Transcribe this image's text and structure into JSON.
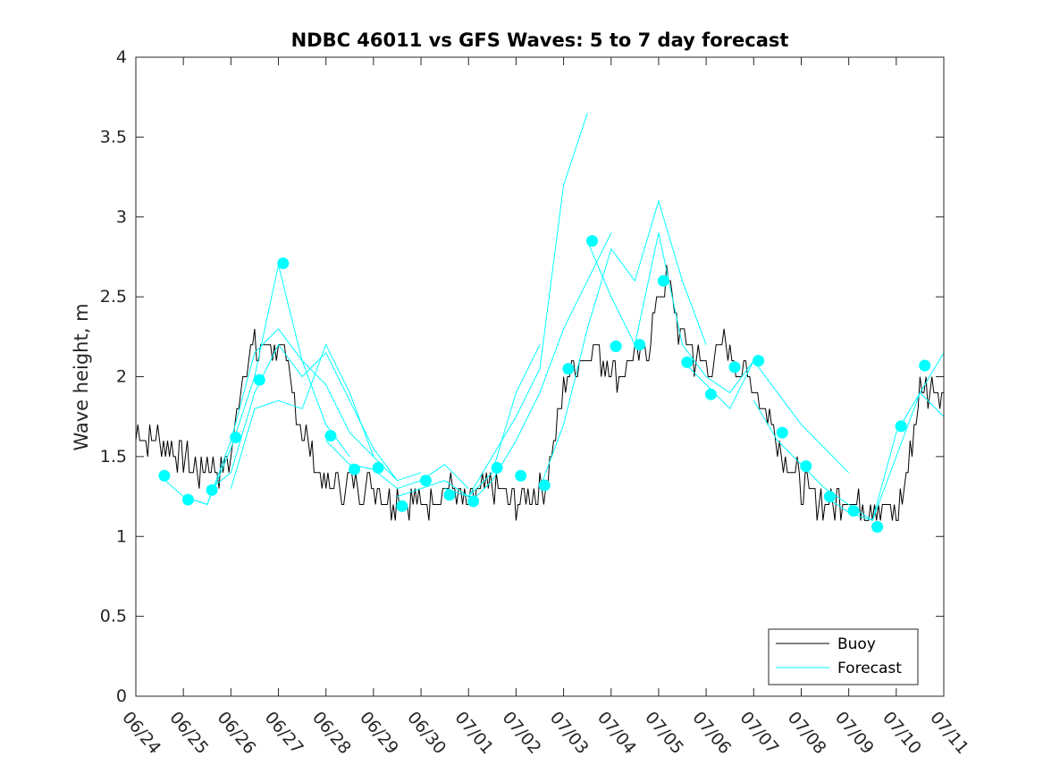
{
  "chart_data": {
    "type": "line",
    "title": "NDBC 46011 vs GFS Waves: 5 to 7 day forecast",
    "xlabel": "",
    "ylabel": "Wave height, m",
    "xlim": [
      "06/24",
      "07/11"
    ],
    "ylim": [
      0,
      4
    ],
    "x_ticks": [
      "06/24",
      "06/25",
      "06/26",
      "06/27",
      "06/28",
      "06/29",
      "06/30",
      "07/01",
      "07/02",
      "07/03",
      "07/04",
      "07/05",
      "07/06",
      "07/07",
      "07/08",
      "07/09",
      "07/10",
      "07/11"
    ],
    "y_ticks": [
      "0",
      "0.5",
      "1",
      "1.5",
      "2",
      "2.5",
      "3",
      "3.5",
      "4"
    ],
    "grid": false,
    "legend": {
      "position": "bottom-right",
      "entries": [
        "Buoy",
        "Forecast"
      ]
    },
    "colors": {
      "buoy": "#000000",
      "forecast": "#00ffff"
    },
    "buoy_x_days_from_0624": [
      0.0,
      0.5,
      1.0,
      1.3,
      1.5,
      1.8,
      2.0,
      2.2,
      2.4,
      2.6,
      2.8,
      3.0,
      3.2,
      3.4,
      3.6,
      3.8,
      4.0,
      4.2,
      4.4,
      4.6,
      4.8,
      5.0,
      5.3,
      5.6,
      6.0,
      6.3,
      6.6,
      7.0,
      7.3,
      7.6,
      8.0,
      8.3,
      8.6,
      9.0,
      9.2,
      9.4,
      9.6,
      9.8,
      10.0,
      10.2,
      10.4,
      10.6,
      10.8,
      11.0,
      11.2,
      11.4,
      11.6,
      11.8,
      12.0,
      12.2,
      12.4,
      12.6,
      12.8,
      13.0,
      13.2,
      13.4,
      13.6,
      13.8,
      14.0,
      14.3,
      14.6,
      15.0,
      15.3,
      15.6,
      15.8,
      16.0,
      16.2,
      16.5,
      16.8,
      17.0
    ],
    "buoy_y": [
      1.65,
      1.6,
      1.5,
      1.4,
      1.45,
      1.4,
      1.5,
      1.9,
      2.2,
      2.15,
      2.2,
      2.2,
      2.0,
      1.8,
      1.6,
      1.4,
      1.3,
      1.35,
      1.3,
      1.35,
      1.3,
      1.35,
      1.2,
      1.25,
      1.2,
      1.25,
      1.3,
      1.2,
      1.3,
      1.3,
      1.2,
      1.25,
      1.3,
      1.9,
      2.1,
      2.1,
      2.2,
      2.1,
      2.1,
      2.0,
      2.1,
      2.15,
      2.2,
      2.5,
      2.6,
      2.3,
      2.2,
      2.1,
      2.05,
      2.1,
      2.2,
      2.1,
      2.0,
      1.95,
      1.8,
      1.7,
      1.5,
      1.45,
      1.3,
      1.25,
      1.2,
      1.25,
      1.2,
      1.2,
      1.15,
      1.1,
      1.35,
      1.9,
      1.95,
      1.9
    ],
    "forecast_markers_x_days_from_0624": [
      0.6,
      1.1,
      1.6,
      2.1,
      2.6,
      3.1,
      4.1,
      4.6,
      5.1,
      5.6,
      6.1,
      6.6,
      7.1,
      7.6,
      8.1,
      8.6,
      9.1,
      9.6,
      10.1,
      10.6,
      11.1,
      11.6,
      12.1,
      12.6,
      13.1,
      13.6,
      14.1,
      14.6,
      15.1,
      15.6,
      16.1,
      16.6
    ],
    "forecast_markers_y": [
      1.38,
      1.23,
      1.29,
      1.62,
      1.98,
      2.71,
      1.63,
      1.42,
      1.43,
      1.19,
      1.35,
      1.26,
      1.22,
      1.43,
      1.38,
      1.32,
      2.05,
      2.85,
      2.19,
      2.2,
      2.6,
      2.09,
      1.89,
      2.06,
      2.1,
      1.65,
      1.44,
      1.25,
      1.16,
      1.06,
      1.69,
      2.07
    ],
    "forecast_series": [
      {
        "x": [
          0.5,
          1.0,
          1.5,
          2.0,
          2.5,
          3.0,
          3.5,
          4.0,
          4.5
        ],
        "y": [
          1.38,
          1.25,
          1.2,
          1.55,
          2.0,
          2.7,
          2.1,
          1.7,
          1.5
        ]
      },
      {
        "x": [
          1.0,
          1.5,
          2.0,
          2.5,
          3.0,
          3.5,
          4.0,
          4.5,
          5.0
        ],
        "y": [
          1.25,
          1.2,
          1.6,
          2.15,
          2.3,
          2.1,
          1.95,
          1.65,
          1.5
        ]
      },
      {
        "x": [
          1.5,
          2.0,
          2.5,
          3.0,
          3.5,
          4.0,
          4.5,
          5.0,
          5.5
        ],
        "y": [
          1.28,
          1.4,
          1.9,
          2.2,
          2.0,
          2.15,
          1.85,
          1.55,
          1.35
        ]
      },
      {
        "x": [
          2.0,
          2.5,
          3.0,
          3.5,
          4.0,
          4.5,
          5.0,
          5.5,
          6.0
        ],
        "y": [
          1.3,
          1.8,
          1.85,
          1.8,
          2.2,
          1.9,
          1.5,
          1.35,
          1.4
        ]
      },
      {
        "x": [
          4.0,
          4.5,
          5.0,
          5.5,
          6.0,
          6.5,
          7.0
        ],
        "y": [
          1.6,
          1.45,
          1.42,
          1.3,
          1.35,
          1.45,
          1.3
        ]
      },
      {
        "x": [
          5.5,
          6.0,
          6.5,
          7.0,
          7.5,
          8.0,
          8.5
        ],
        "y": [
          1.25,
          1.3,
          1.35,
          1.25,
          1.4,
          1.9,
          2.2
        ]
      },
      {
        "x": [
          6.5,
          7.0,
          7.5,
          8.0,
          8.5,
          9.0,
          9.5
        ],
        "y": [
          1.3,
          1.25,
          1.5,
          1.75,
          2.05,
          3.2,
          3.65
        ]
      },
      {
        "x": [
          7.0,
          7.5,
          8.0,
          8.5,
          9.0,
          9.5,
          10.0
        ],
        "y": [
          1.2,
          1.35,
          1.6,
          1.9,
          2.3,
          2.6,
          2.9
        ]
      },
      {
        "x": [
          8.5,
          9.0,
          9.5,
          10.0,
          10.5,
          11.0,
          11.5,
          12.0
        ],
        "y": [
          1.3,
          1.7,
          2.3,
          2.8,
          2.6,
          3.1,
          2.6,
          2.2
        ]
      },
      {
        "x": [
          9.5,
          10.0,
          10.5,
          11.0,
          11.5,
          12.0,
          12.5,
          13.0
        ],
        "y": [
          2.85,
          2.5,
          2.2,
          2.9,
          2.2,
          2.0,
          1.9,
          2.1
        ]
      },
      {
        "x": [
          11.5,
          12.0,
          12.5,
          13.0,
          13.5,
          14.0,
          14.5,
          15.0
        ],
        "y": [
          2.1,
          1.95,
          1.8,
          2.1,
          1.9,
          1.7,
          1.55,
          1.4
        ]
      },
      {
        "x": [
          13.0,
          13.5,
          14.0,
          14.5,
          15.0,
          15.5,
          16.0,
          16.5,
          17.0
        ],
        "y": [
          1.85,
          1.6,
          1.45,
          1.3,
          1.2,
          1.1,
          1.5,
          1.9,
          1.75
        ]
      },
      {
        "x": [
          14.5,
          15.0,
          15.5,
          16.0,
          16.5,
          17.0
        ],
        "y": [
          1.25,
          1.15,
          1.1,
          1.65,
          1.9,
          2.15
        ]
      }
    ]
  }
}
